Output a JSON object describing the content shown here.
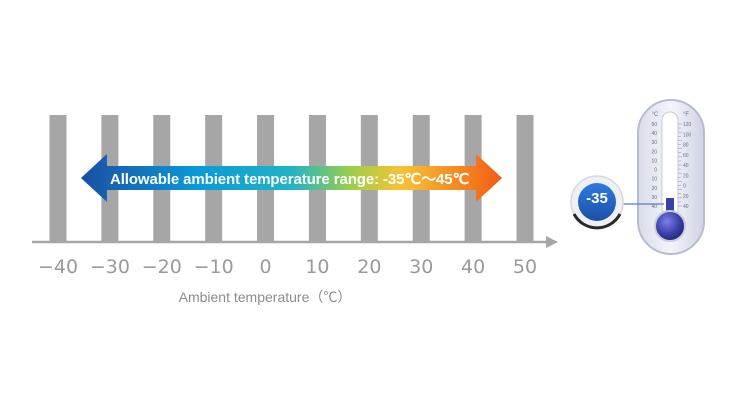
{
  "chart_data": {
    "type": "range-on-axis",
    "ticks": [
      "−40",
      "−30",
      "−20",
      "−10",
      "0",
      "10",
      "20",
      "30",
      "40",
      "50"
    ],
    "tick_values": [
      -40,
      -30,
      -20,
      -10,
      0,
      10,
      20,
      30,
      40,
      50
    ],
    "xlim": [
      -40,
      50
    ],
    "xlabel": "Ambient temperature（℃）",
    "range": {
      "min": -35,
      "max": 45,
      "label": "Allowable ambient temperature range: -35℃～45℃"
    }
  },
  "thermometer": {
    "reading": "-35",
    "scale_left_unit": "°C",
    "scale_right_unit": "°F",
    "scale_left": [
      "50",
      "40",
      "30",
      "20",
      "10",
      "0",
      "10",
      "20",
      "30",
      "40"
    ],
    "scale_right": [
      "120",
      "100",
      "80",
      "60",
      "40",
      "20",
      "0",
      "20",
      "40"
    ]
  },
  "colors": {
    "bar": "#a6a6a6",
    "axis": "#a6a6a6",
    "tick_text": "#9a9a9a",
    "gradient": [
      "#1b4fa3",
      "#0aa3dc",
      "#8cc63f",
      "#f7c234",
      "#f26a1c"
    ],
    "badge": "#1e64c8",
    "bulb": "#3b3fa8"
  }
}
